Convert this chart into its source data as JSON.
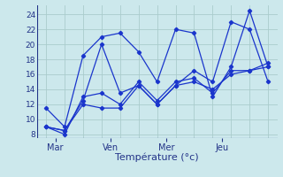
{
  "xlabel": "Température (°c)",
  "background_color": "#cce8ec",
  "grid_color": "#aacccc",
  "line_color": "#1a35cc",
  "ylim": [
    7.5,
    25.2
  ],
  "yticks": [
    8,
    10,
    12,
    14,
    16,
    18,
    20,
    22,
    24
  ],
  "xlim": [
    -0.5,
    12.5
  ],
  "x_day_labels": [
    "Mar",
    "Ven",
    "Mer",
    "Jeu"
  ],
  "x_tick_positions": [
    0.5,
    3.5,
    6.5,
    9.5
  ],
  "series": [
    {
      "x": [
        0,
        1,
        2,
        3,
        4,
        5,
        6,
        7,
        8,
        9,
        10,
        11,
        12
      ],
      "y": [
        11.5,
        9.0,
        18.5,
        21.0,
        21.5,
        19.0,
        15.0,
        22.0,
        21.5,
        13.0,
        17.0,
        24.5,
        17.0
      ]
    },
    {
      "x": [
        0,
        1,
        2,
        3,
        4,
        5,
        6,
        7,
        8,
        9,
        10,
        11,
        12
      ],
      "y": [
        9.0,
        8.5,
        12.5,
        20.0,
        13.5,
        14.5,
        12.0,
        14.5,
        16.5,
        15.0,
        23.0,
        22.0,
        15.0
      ]
    },
    {
      "x": [
        0,
        1,
        2,
        3,
        4,
        5,
        6,
        7,
        8,
        9,
        10,
        11,
        12
      ],
      "y": [
        9.0,
        8.0,
        13.0,
        13.5,
        12.0,
        15.0,
        12.5,
        15.0,
        15.5,
        13.5,
        16.5,
        16.5,
        17.0
      ]
    },
    {
      "x": [
        0,
        1,
        2,
        3,
        4,
        5,
        6,
        7,
        8,
        9,
        10,
        11,
        12
      ],
      "y": [
        9.0,
        8.5,
        12.0,
        11.5,
        11.5,
        14.5,
        12.0,
        14.5,
        15.0,
        14.0,
        16.0,
        16.5,
        17.5
      ]
    }
  ],
  "grid_x_positions": [
    0,
    1,
    2,
    3,
    4,
    5,
    6,
    7,
    8,
    9,
    10,
    11,
    12
  ]
}
